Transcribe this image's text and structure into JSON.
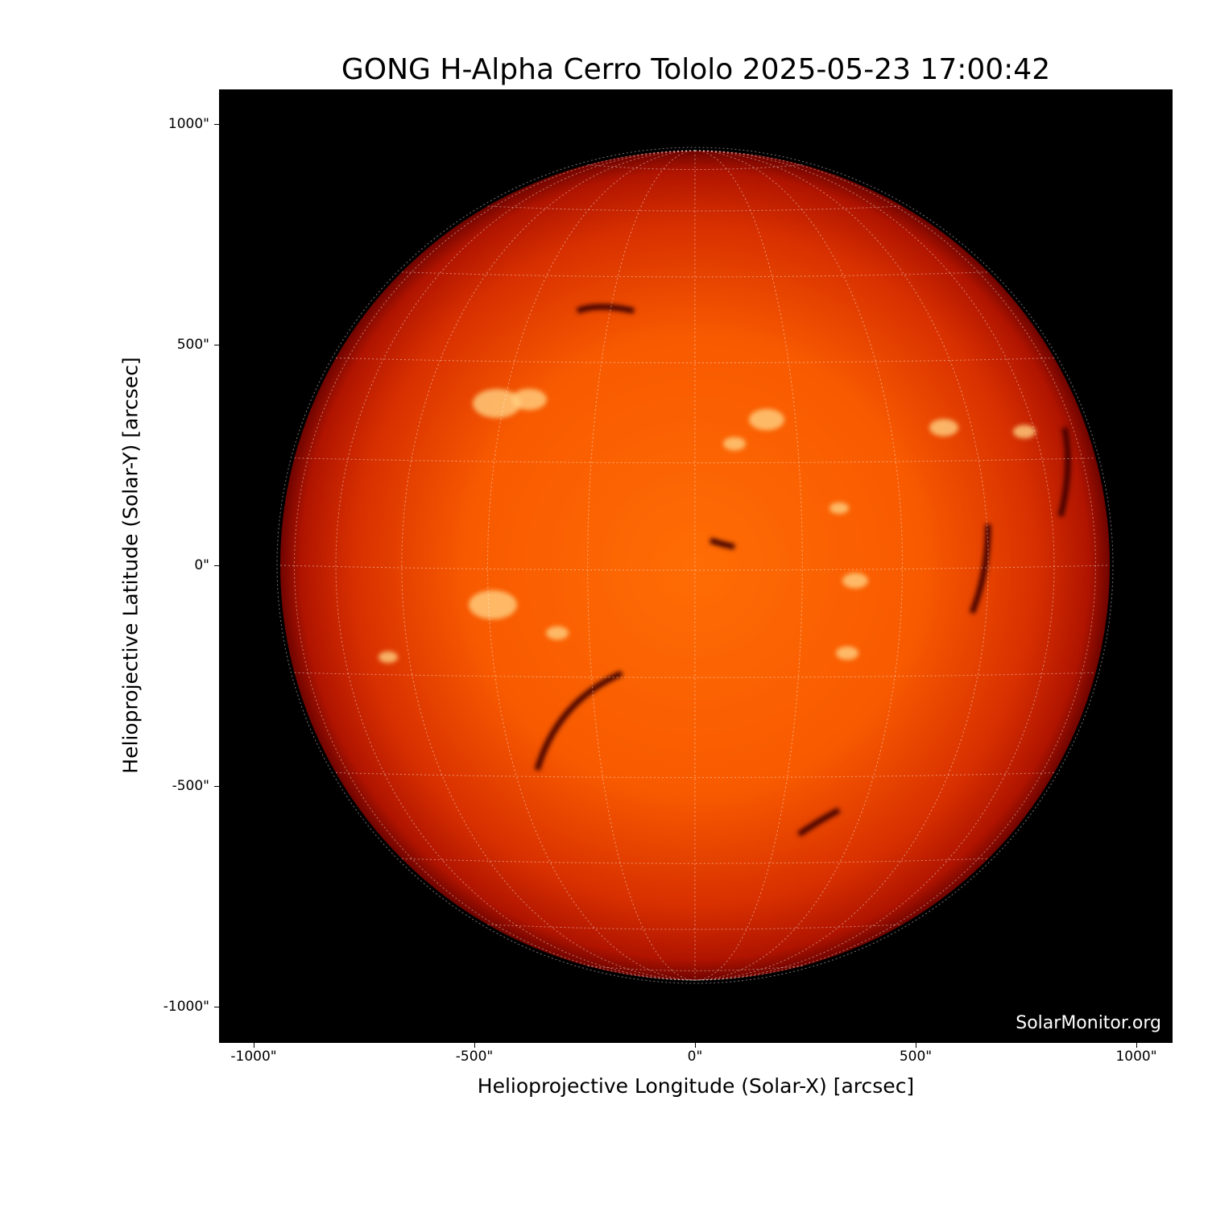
{
  "title": "GONG H-Alpha Cerro Tololo 2025-05-23 17:00:42",
  "xlabel": "Helioprojective Longitude (Solar-X) [arcsec]",
  "ylabel": "Helioprojective Latitude (Solar-Y) [arcsec]",
  "x_ticks": [
    "-1000\"",
    "-500\"",
    "0\"",
    "500\"",
    "1000\""
  ],
  "y_ticks": [
    "1000\"",
    "500\"",
    "0\"",
    "-500\"",
    "-1000\""
  ],
  "x_tick_values": [
    -1000,
    -500,
    0,
    500,
    1000
  ],
  "y_tick_values": [
    1000,
    500,
    0,
    -500,
    -1000
  ],
  "axis_range_arcsec": [
    -1080,
    1080
  ],
  "watermark": "SolarMonitor.org",
  "colors": {
    "disk_center": "#ff6a00",
    "disk_limb": "#a00800",
    "background": "#000000",
    "grid": "#ffffff"
  },
  "grid_spacing_deg": 15
}
